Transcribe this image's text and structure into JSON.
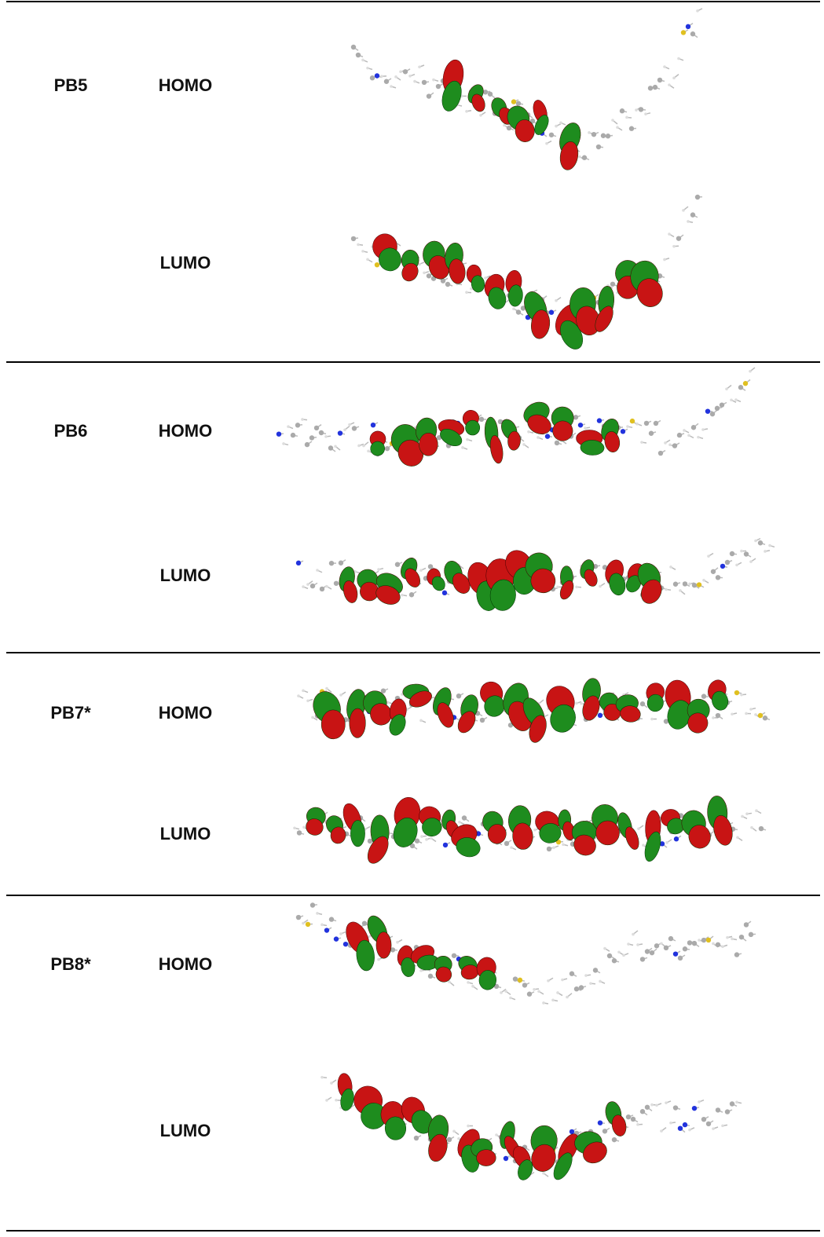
{
  "table": {
    "rows": [
      {
        "compound": "PB5",
        "orbitals": [
          "HOMO",
          "LUMO"
        ]
      },
      {
        "compound": "PB6",
        "orbitals": [
          "HOMO",
          "LUMO"
        ]
      },
      {
        "compound": "PB7*",
        "orbitals": [
          "HOMO",
          "LUMO"
        ]
      },
      {
        "compound": "PB8*",
        "orbitals": [
          "HOMO",
          "LUMO"
        ]
      }
    ]
  }
}
